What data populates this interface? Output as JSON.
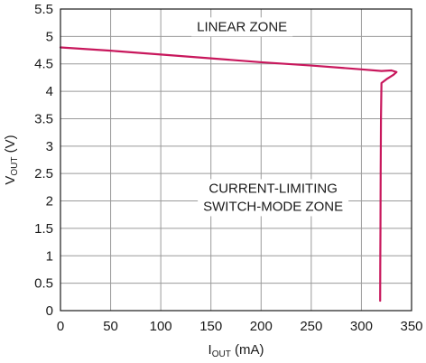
{
  "chart_data": {
    "type": "line",
    "x_axis": {
      "label_main": "I",
      "label_sub": "OUT",
      "label_unit": " (mA)",
      "range": [
        0,
        350
      ],
      "ticks": [
        0,
        50,
        100,
        150,
        200,
        250,
        300,
        350
      ]
    },
    "y_axis": {
      "label_main": "V",
      "label_sub": "OUT",
      "label_unit": " (V)",
      "range": [
        0,
        5.5
      ],
      "ticks": [
        0,
        0.5,
        1,
        1.5,
        2,
        2.5,
        3,
        3.5,
        4,
        4.5,
        5,
        5.5
      ]
    },
    "grid": true,
    "series": [
      {
        "color": "#c8175c",
        "points": [
          [
            0,
            4.8
          ],
          [
            50,
            4.74
          ],
          [
            100,
            4.67
          ],
          [
            150,
            4.6
          ],
          [
            200,
            4.53
          ],
          [
            250,
            4.47
          ],
          [
            300,
            4.4
          ],
          [
            320,
            4.37
          ],
          [
            330,
            4.38
          ],
          [
            335,
            4.35
          ],
          [
            332,
            4.3
          ],
          [
            325,
            4.22
          ],
          [
            320,
            4.15
          ],
          [
            319.5,
            3.5
          ],
          [
            319.2,
            2.5
          ],
          [
            319,
            1.5
          ],
          [
            318.8,
            0.8
          ],
          [
            318.7,
            0.18
          ]
        ]
      }
    ],
    "annotations": [
      {
        "lines": [
          "LINEAR ZONE"
        ],
        "x": 181,
        "y": 5.1,
        "anchor": "middle"
      },
      {
        "lines": [
          "CURRENT-LIMITING",
          "SWITCH-MODE ZONE"
        ],
        "x": 212,
        "y": 2.15,
        "anchor": "middle"
      }
    ]
  }
}
